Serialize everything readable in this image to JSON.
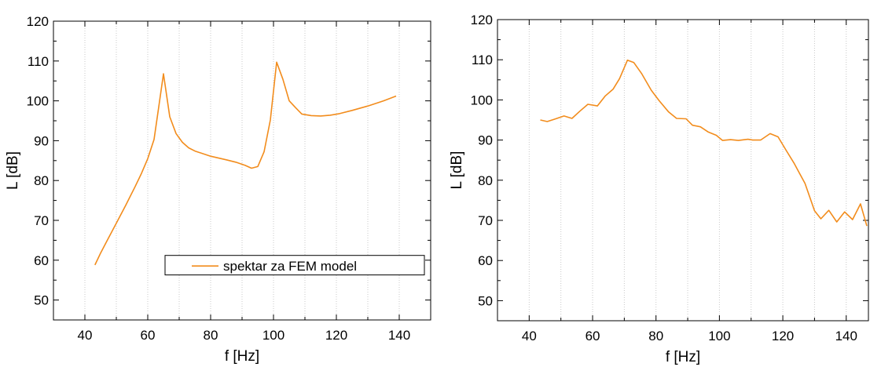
{
  "series_color": "#f28c1c",
  "chart_data": [
    {
      "type": "line",
      "xlabel": "f [Hz]",
      "ylabel": "L [dB]",
      "xlim": [
        30,
        150
      ],
      "ylim": [
        45,
        120
      ],
      "xticks": [
        40,
        60,
        80,
        100,
        120,
        140
      ],
      "yticks": [
        50,
        60,
        70,
        80,
        90,
        100,
        110,
        120
      ],
      "xgrid_minor_step": 10,
      "legend": {
        "entries": [
          "spektar za FEM model"
        ],
        "placement": "lower-right"
      },
      "series": [
        {
          "name": "spektar za FEM model",
          "x": [
            43.2,
            45,
            47,
            50,
            53,
            56,
            58,
            60,
            62,
            63.5,
            65,
            67,
            69,
            71,
            73,
            75,
            80,
            85,
            88,
            91,
            93,
            95,
            97,
            99,
            101,
            103,
            105,
            107,
            109,
            112,
            115,
            118,
            121,
            125,
            130,
            135,
            139
          ],
          "y": [
            58.8,
            61.8,
            64.8,
            69.3,
            73.8,
            78.5,
            81.8,
            85.5,
            90.3,
            98.5,
            106.8,
            96,
            91.8,
            89.6,
            88.2,
            87.4,
            86.1,
            85.2,
            84.6,
            83.8,
            83.1,
            83.5,
            87.2,
            95.2,
            109.7,
            105.4,
            100,
            98.3,
            96.7,
            96.3,
            96.2,
            96.4,
            96.8,
            97.6,
            98.7,
            100,
            101.2
          ]
        }
      ]
    },
    {
      "type": "line",
      "xlabel": "f [Hz]",
      "ylabel": "L [dB]",
      "xlim": [
        30,
        147
      ],
      "ylim": [
        45,
        120
      ],
      "xticks": [
        40,
        60,
        80,
        100,
        120,
        140
      ],
      "yticks": [
        50,
        60,
        70,
        80,
        90,
        100,
        110,
        120
      ],
      "xgrid_minor_step": 10,
      "series": [
        {
          "x": [
            43.5,
            45.7,
            48,
            51,
            53.5,
            56,
            58.5,
            61.5,
            64,
            66.5,
            68.5,
            71,
            73,
            75.5,
            78.5,
            81,
            84,
            86.5,
            89.5,
            91.5,
            94,
            96.5,
            99,
            101,
            103.5,
            106,
            109,
            110.5,
            113,
            116,
            118.5,
            121,
            123.5,
            127,
            130,
            132,
            134.5,
            137,
            139.5,
            142,
            144.5,
            146.5
          ],
          "y": [
            95,
            94.6,
            95.2,
            96,
            95.4,
            97.2,
            98.9,
            98.5,
            101,
            102.7,
            105.3,
            109.9,
            109.3,
            106.5,
            102.4,
            99.8,
            97,
            95.4,
            95.3,
            93.7,
            93.3,
            92,
            91.2,
            89.9,
            90.1,
            89.9,
            90.2,
            90,
            90,
            91.6,
            90.8,
            87.5,
            84.3,
            79.2,
            72.4,
            70.4,
            72.5,
            69.6,
            72.1,
            70.2,
            74.1,
            68.6
          ]
        }
      ]
    }
  ]
}
